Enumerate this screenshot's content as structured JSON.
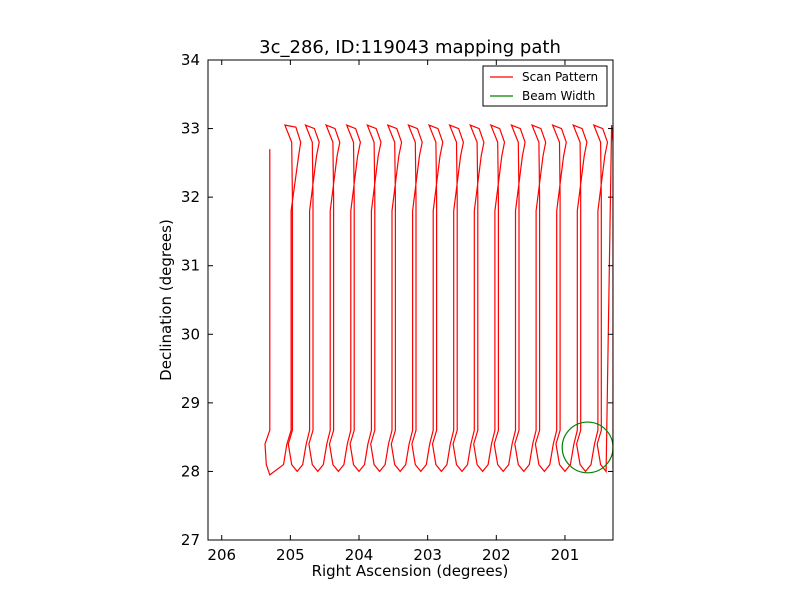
{
  "chart_data": {
    "type": "line",
    "title": "3c_286, ID:119043 mapping path",
    "xlabel": "Right Ascension (degrees)",
    "ylabel": "Declination (degrees)",
    "xlim": [
      206.2,
      200.3
    ],
    "ylim": [
      27,
      34
    ],
    "x_ticks": [
      "206",
      "205",
      "204",
      "203",
      "202",
      "201"
    ],
    "y_ticks": [
      "27",
      "28",
      "29",
      "30",
      "31",
      "32",
      "33",
      "34"
    ],
    "x_reversed": true,
    "grid": false,
    "legend_position": "top-right",
    "scan_columns_ra": [
      205.3,
      205.0,
      204.7,
      204.4,
      204.1,
      203.8,
      203.5,
      203.2,
      202.9,
      202.6,
      202.3,
      202.0,
      201.7,
      201.4,
      201.1,
      200.8,
      200.5
    ],
    "series": [
      {
        "name": "Scan Pattern",
        "color": "#ff0000",
        "description_values": "Raster scan: vertical sweeps in Declination between ~27.95 and ~33.1 degrees, stepping in RA",
        "dec_min": 27.95,
        "dec_max": 33.08
      },
      {
        "name": "Beam Width",
        "color": "#008000",
        "circle_center": [
          200.67,
          28.35
        ],
        "circle_radius_deg": 0.37
      }
    ]
  }
}
